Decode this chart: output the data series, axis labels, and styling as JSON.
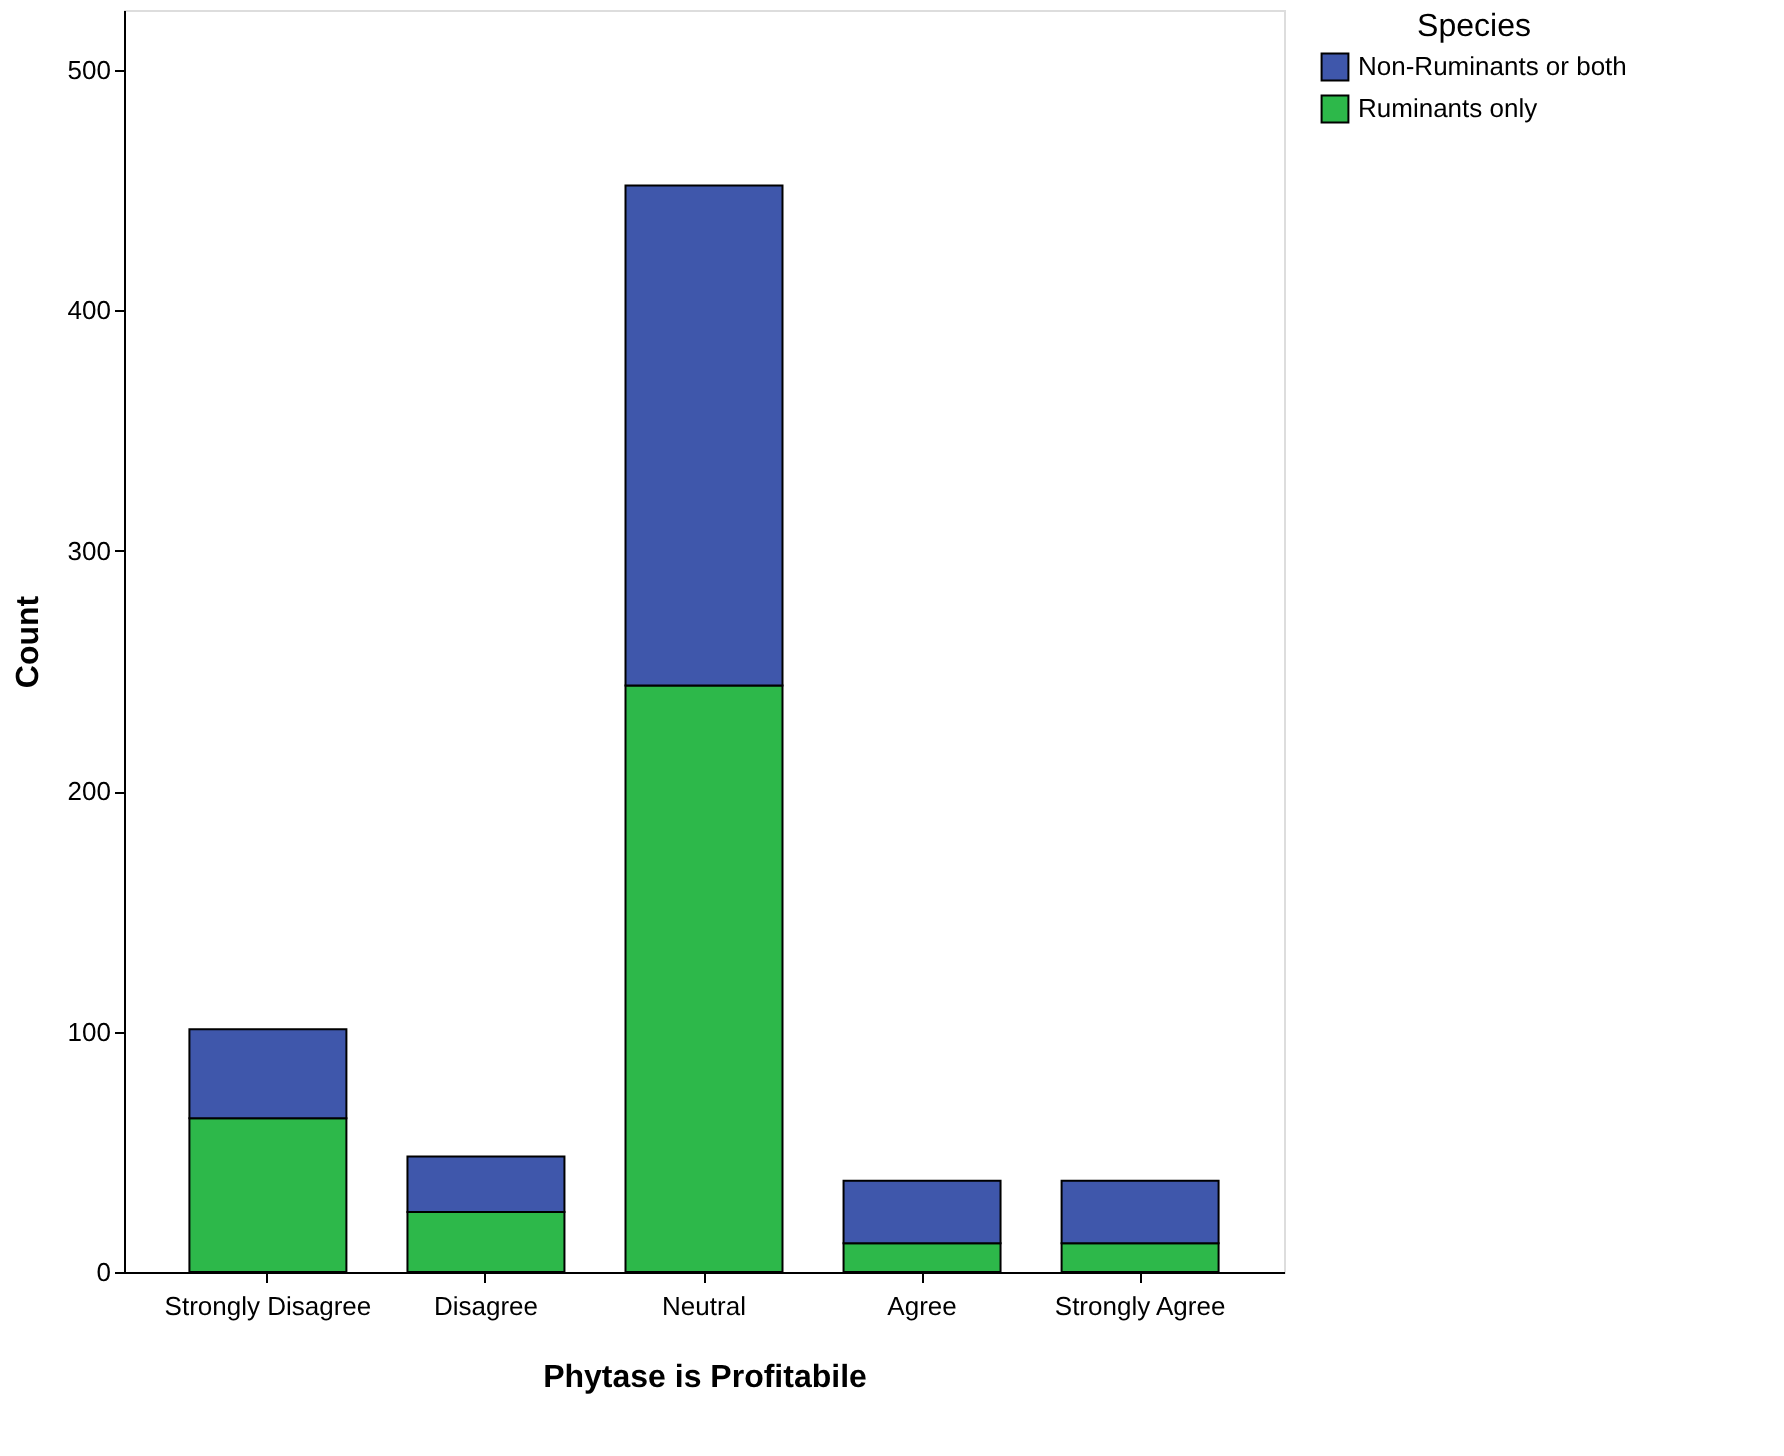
{
  "chart_data": {
    "type": "bar",
    "stacked": true,
    "xlabel": "Phytase is Profitabile",
    "ylabel": "Count",
    "legend_title": "Species",
    "legend": "top right",
    "grid": false,
    "categories": [
      "Strongly Disagree",
      "Disagree",
      "Neutral",
      "Agree",
      "Strongly Agree"
    ],
    "series": [
      {
        "name": "Ruminants only",
        "color": "#2db84a",
        "values": [
          64,
          25,
          244,
          12,
          12
        ]
      },
      {
        "name": "Non-Ruminants or both",
        "color": "#3f57ab",
        "values": [
          37,
          23,
          208,
          26,
          26
        ]
      }
    ],
    "ylim": [
      0,
      525
    ],
    "yticks": [
      0,
      100,
      200,
      300,
      400,
      500
    ]
  }
}
